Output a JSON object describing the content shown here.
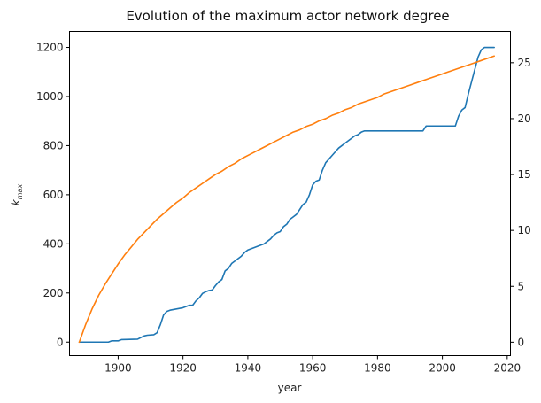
{
  "chart_data": {
    "type": "line",
    "title": "Evolution of the maximum actor network degree",
    "xlabel": "year",
    "ylabel": "k_max",
    "ylabel_main": "k",
    "ylabel_sub": "max",
    "xlim": [
      1885,
      2021
    ],
    "ylim": [
      -55,
      1265
    ],
    "y2lim": [
      -1.2,
      27.8
    ],
    "x_ticks": [
      1900,
      1920,
      1940,
      1960,
      1980,
      2000,
      2020
    ],
    "y_ticks": [
      0,
      200,
      400,
      600,
      800,
      1000,
      1200
    ],
    "y2_ticks": [
      0,
      5,
      10,
      15,
      20,
      25
    ],
    "grid": false,
    "series": [
      {
        "axis": "left",
        "color": "#1f77b4",
        "x": [
          1888,
          1897,
          1898,
          1900,
          1901,
          1906,
          1908,
          1909,
          1911,
          1912,
          1913,
          1914,
          1915,
          1916,
          1918,
          1920,
          1921,
          1922,
          1923,
          1924,
          1925,
          1926,
          1927,
          1928,
          1929,
          1930,
          1931,
          1932,
          1933,
          1934,
          1935,
          1936,
          1937,
          1938,
          1939,
          1940,
          1941,
          1942,
          1943,
          1944,
          1945,
          1946,
          1947,
          1948,
          1949,
          1950,
          1951,
          1952,
          1953,
          1954,
          1955,
          1956,
          1957,
          1958,
          1959,
          1960,
          1961,
          1962,
          1963,
          1964,
          1965,
          1966,
          1967,
          1968,
          1969,
          1970,
          1971,
          1972,
          1973,
          1974,
          1975,
          1976,
          1977,
          1978,
          1994,
          1995,
          2004,
          2005,
          2006,
          2007,
          2008,
          2009,
          2010,
          2011,
          2012,
          2013,
          2014,
          2015,
          2016
        ],
        "y": [
          0,
          0,
          5,
          5,
          10,
          12,
          25,
          28,
          30,
          38,
          70,
          110,
          125,
          130,
          135,
          140,
          145,
          150,
          150,
          168,
          180,
          198,
          205,
          210,
          212,
          230,
          245,
          255,
          290,
          300,
          320,
          330,
          340,
          350,
          365,
          375,
          380,
          385,
          390,
          395,
          400,
          410,
          420,
          435,
          445,
          450,
          470,
          480,
          500,
          510,
          520,
          540,
          560,
          570,
          600,
          640,
          655,
          660,
          700,
          730,
          745,
          760,
          775,
          790,
          800,
          810,
          820,
          830,
          840,
          845,
          855,
          860,
          860,
          860,
          860,
          880,
          880,
          920,
          945,
          955,
          1010,
          1060,
          1110,
          1160,
          1190,
          1200,
          1200,
          1200,
          1200
        ]
      },
      {
        "axis": "right",
        "color": "#ff7f0e",
        "x": [
          1888,
          1890,
          1892,
          1894,
          1896,
          1898,
          1900,
          1902,
          1904,
          1906,
          1908,
          1910,
          1912,
          1914,
          1916,
          1918,
          1920,
          1922,
          1924,
          1926,
          1928,
          1930,
          1932,
          1934,
          1936,
          1938,
          1940,
          1942,
          1944,
          1946,
          1948,
          1950,
          1952,
          1954,
          1956,
          1958,
          1960,
          1962,
          1964,
          1966,
          1968,
          1970,
          1972,
          1974,
          1976,
          1978,
          1980,
          1982,
          1984,
          1986,
          1988,
          1990,
          1992,
          1994,
          1996,
          1998,
          2000,
          2002,
          2004,
          2006,
          2008,
          2010,
          2012,
          2014,
          2016
        ],
        "y": [
          0,
          1.6,
          3.0,
          4.2,
          5.2,
          6.1,
          7.0,
          7.8,
          8.5,
          9.2,
          9.8,
          10.4,
          11.0,
          11.5,
          12.0,
          12.5,
          12.9,
          13.4,
          13.8,
          14.2,
          14.6,
          15.0,
          15.3,
          15.7,
          16.0,
          16.4,
          16.7,
          17.0,
          17.3,
          17.6,
          17.9,
          18.2,
          18.5,
          18.8,
          19.0,
          19.3,
          19.5,
          19.8,
          20.0,
          20.3,
          20.5,
          20.8,
          21.0,
          21.3,
          21.5,
          21.7,
          21.9,
          22.2,
          22.4,
          22.6,
          22.8,
          23.0,
          23.2,
          23.4,
          23.6,
          23.8,
          24.0,
          24.2,
          24.4,
          24.6,
          24.8,
          25.0,
          25.2,
          25.4,
          25.6
        ]
      }
    ]
  }
}
